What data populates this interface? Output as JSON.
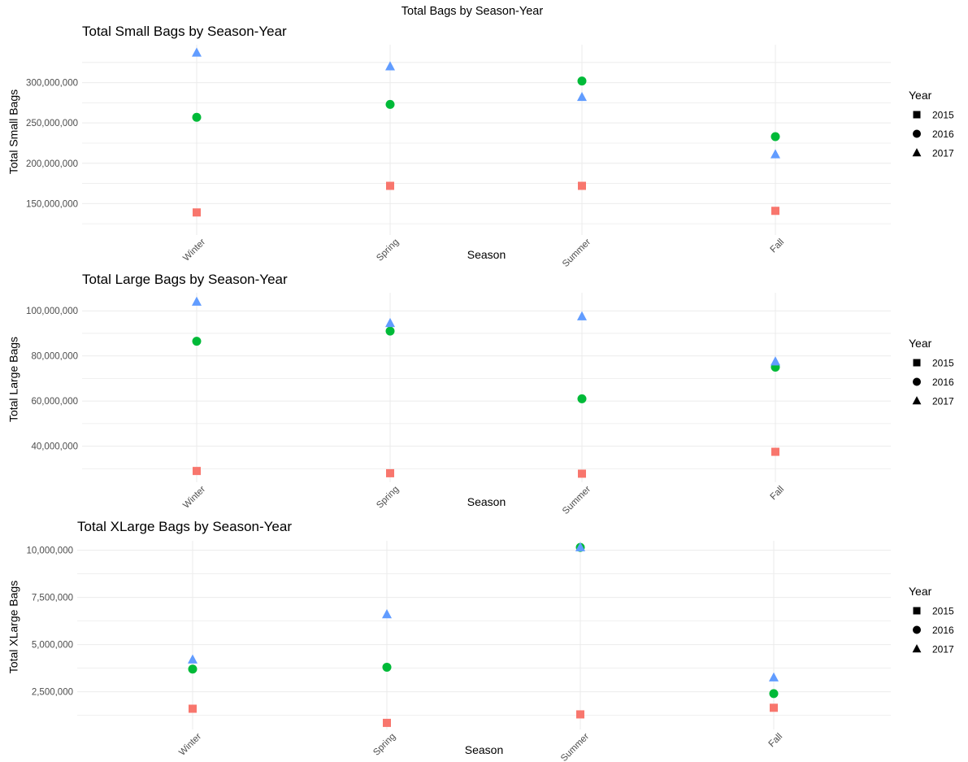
{
  "figure": {
    "title": "Total Bags by Season-Year"
  },
  "palette": {
    "2015": "#F8766D",
    "2016": "#00BA38",
    "2017": "#619CFF",
    "grid": "#ebebeb",
    "tick_text": "#4d4d4d"
  },
  "legend": {
    "title": "Year",
    "entries": [
      {
        "label": "2015",
        "shape": "square"
      },
      {
        "label": "2016",
        "shape": "circle"
      },
      {
        "label": "2017",
        "shape": "triangle"
      }
    ]
  },
  "chart_data": [
    {
      "type": "scatter",
      "title": "Total Small Bags by Season-Year",
      "xlabel": "Season",
      "ylabel": "Total Small Bags",
      "categories": [
        "Winter",
        "Spring",
        "Summer",
        "Fall"
      ],
      "y_ticks": [
        150000000,
        200000000,
        250000000,
        300000000
      ],
      "y_tick_labels": [
        "150,000,000",
        "200,000,000",
        "250,000,000",
        "300,000,000"
      ],
      "ylim": [
        111000000,
        347000000
      ],
      "grid": true,
      "legend_position": "right",
      "series": [
        {
          "name": "2015",
          "shape": "square",
          "values": [
            139000000,
            172000000,
            172000000,
            141000000
          ]
        },
        {
          "name": "2016",
          "shape": "circle",
          "values": [
            257000000,
            273000000,
            302000000,
            233000000
          ]
        },
        {
          "name": "2017",
          "shape": "triangle",
          "values": [
            337000000,
            320000000,
            282000000,
            211000000
          ]
        }
      ]
    },
    {
      "type": "scatter",
      "title": "Total Large Bags by Season-Year",
      "xlabel": "Season",
      "ylabel": "Total Large Bags",
      "categories": [
        "Winter",
        "Spring",
        "Summer",
        "Fall"
      ],
      "y_ticks": [
        40000000,
        60000000,
        80000000,
        100000000
      ],
      "y_tick_labels": [
        "40,000,000",
        "60,000,000",
        "80,000,000",
        "100,000,000"
      ],
      "ylim": [
        24000000,
        108000000
      ],
      "grid": true,
      "legend_position": "right",
      "series": [
        {
          "name": "2015",
          "shape": "square",
          "values": [
            29000000,
            28000000,
            27800000,
            37500000
          ]
        },
        {
          "name": "2016",
          "shape": "circle",
          "values": [
            86500000,
            91000000,
            61000000,
            75000000
          ]
        },
        {
          "name": "2017",
          "shape": "triangle",
          "values": [
            104000000,
            94500000,
            97500000,
            77500000
          ]
        }
      ]
    },
    {
      "type": "scatter",
      "title": "Total XLarge Bags by Season-Year",
      "xlabel": "Season",
      "ylabel": "Total XLarge Bags",
      "categories": [
        "Winter",
        "Spring",
        "Summer",
        "Fall"
      ],
      "y_ticks": [
        2500000,
        5000000,
        7500000,
        10000000
      ],
      "y_tick_labels": [
        "2,500,000",
        "5,000,000",
        "7,500,000",
        "10,000,000"
      ],
      "ylim": [
        500000,
        10500000
      ],
      "grid": true,
      "legend_position": "right",
      "series": [
        {
          "name": "2015",
          "shape": "square",
          "values": [
            1600000,
            850000,
            1300000,
            1650000
          ]
        },
        {
          "name": "2016",
          "shape": "circle",
          "values": [
            3700000,
            3800000,
            10150000,
            2400000
          ]
        },
        {
          "name": "2017",
          "shape": "triangle",
          "values": [
            4200000,
            6600000,
            10150000,
            3250000
          ]
        }
      ]
    }
  ]
}
